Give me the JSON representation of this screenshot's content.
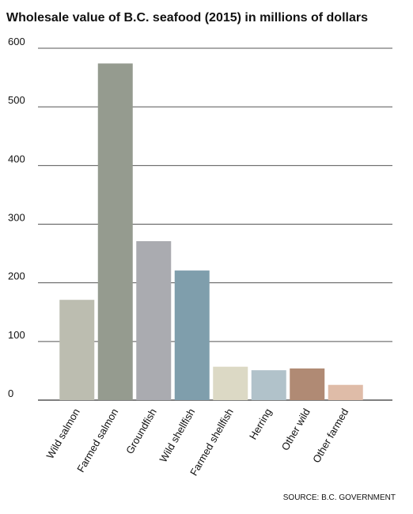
{
  "chart_data": {
    "type": "bar",
    "title": "Wholesale value of B.C. seafood (2015) in millions of dollars",
    "categories": [
      "Wild salmon",
      "Farmed salmon",
      "Groundfish",
      "Wild shellfish",
      "Farmed shellfish",
      "Herring",
      "Other wild",
      "Other farmed"
    ],
    "values": [
      171,
      574,
      271,
      221,
      57,
      51,
      54,
      26
    ],
    "colors": [
      "#bcbdb0",
      "#959b8f",
      "#aaabb0",
      "#7f9eac",
      "#dcd9c5",
      "#b1c2ca",
      "#b08a74",
      "#dfbca8"
    ],
    "ylim": [
      0,
      600
    ],
    "yticks": [
      0,
      100,
      200,
      300,
      400,
      500,
      600
    ],
    "grid": true,
    "source": "SOURCE: B.C. GOVERNMENT"
  }
}
